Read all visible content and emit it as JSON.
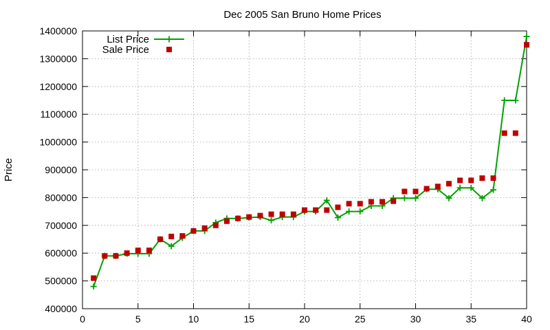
{
  "chart_data": {
    "type": "line",
    "title": "Dec 2005 San Bruno Home Prices",
    "xlabel": "",
    "ylabel": "Price",
    "xlim": [
      0,
      40
    ],
    "ylim": [
      400000,
      1400000
    ],
    "x_ticks": [
      0,
      5,
      10,
      15,
      20,
      25,
      30,
      35,
      40
    ],
    "y_ticks": [
      400000,
      500000,
      600000,
      700000,
      800000,
      900000,
      1000000,
      1100000,
      1200000,
      1300000,
      1400000
    ],
    "grid": true,
    "legend_position": "top-left",
    "series": [
      {
        "name": "List Price",
        "style": "linespoints",
        "color": "#00a000",
        "x": [
          1,
          2,
          3,
          4,
          5,
          6,
          7,
          8,
          9,
          10,
          11,
          12,
          13,
          14,
          15,
          16,
          17,
          18,
          19,
          20,
          21,
          22,
          23,
          24,
          25,
          26,
          27,
          28,
          29,
          30,
          31,
          32,
          33,
          34,
          35,
          36,
          37,
          38,
          39,
          40
        ],
        "values": [
          480000,
          590000,
          590000,
          598000,
          598000,
          598000,
          650000,
          625000,
          655000,
          680000,
          680000,
          710000,
          725000,
          725000,
          728000,
          730000,
          718000,
          730000,
          730000,
          750000,
          750000,
          790000,
          728000,
          750000,
          750000,
          770000,
          770000,
          798000,
          798000,
          798000,
          830000,
          830000,
          798000,
          835000,
          835000,
          798000,
          828000,
          1150000,
          1150000,
          1380000
        ]
      },
      {
        "name": "Sale Price",
        "style": "points",
        "color": "#c00000",
        "x": [
          1,
          2,
          3,
          4,
          5,
          6,
          7,
          8,
          9,
          10,
          11,
          12,
          13,
          14,
          15,
          16,
          17,
          18,
          19,
          20,
          21,
          22,
          23,
          24,
          25,
          26,
          27,
          28,
          29,
          30,
          31,
          32,
          33,
          34,
          35,
          36,
          37,
          38,
          39,
          40
        ],
        "values": [
          510000,
          590000,
          590000,
          600000,
          610000,
          610000,
          650000,
          660000,
          662000,
          680000,
          690000,
          700000,
          715000,
          725000,
          730000,
          735000,
          740000,
          740000,
          740000,
          755000,
          755000,
          755000,
          765000,
          778000,
          778000,
          785000,
          785000,
          787000,
          822000,
          822000,
          832000,
          840000,
          850000,
          862000,
          862000,
          870000,
          870000,
          1032000,
          1032000,
          1350000
        ]
      }
    ]
  }
}
